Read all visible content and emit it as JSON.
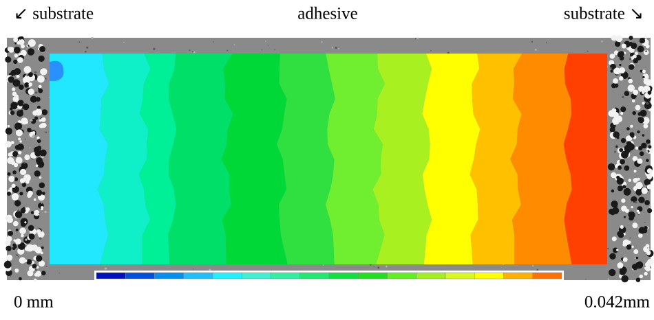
{
  "labels": {
    "left": "↙ substrate",
    "center": "adhesive",
    "right": "substrate ↘"
  },
  "scale": {
    "min_label": "0 mm",
    "max_label": "0.042mm"
  }
}
